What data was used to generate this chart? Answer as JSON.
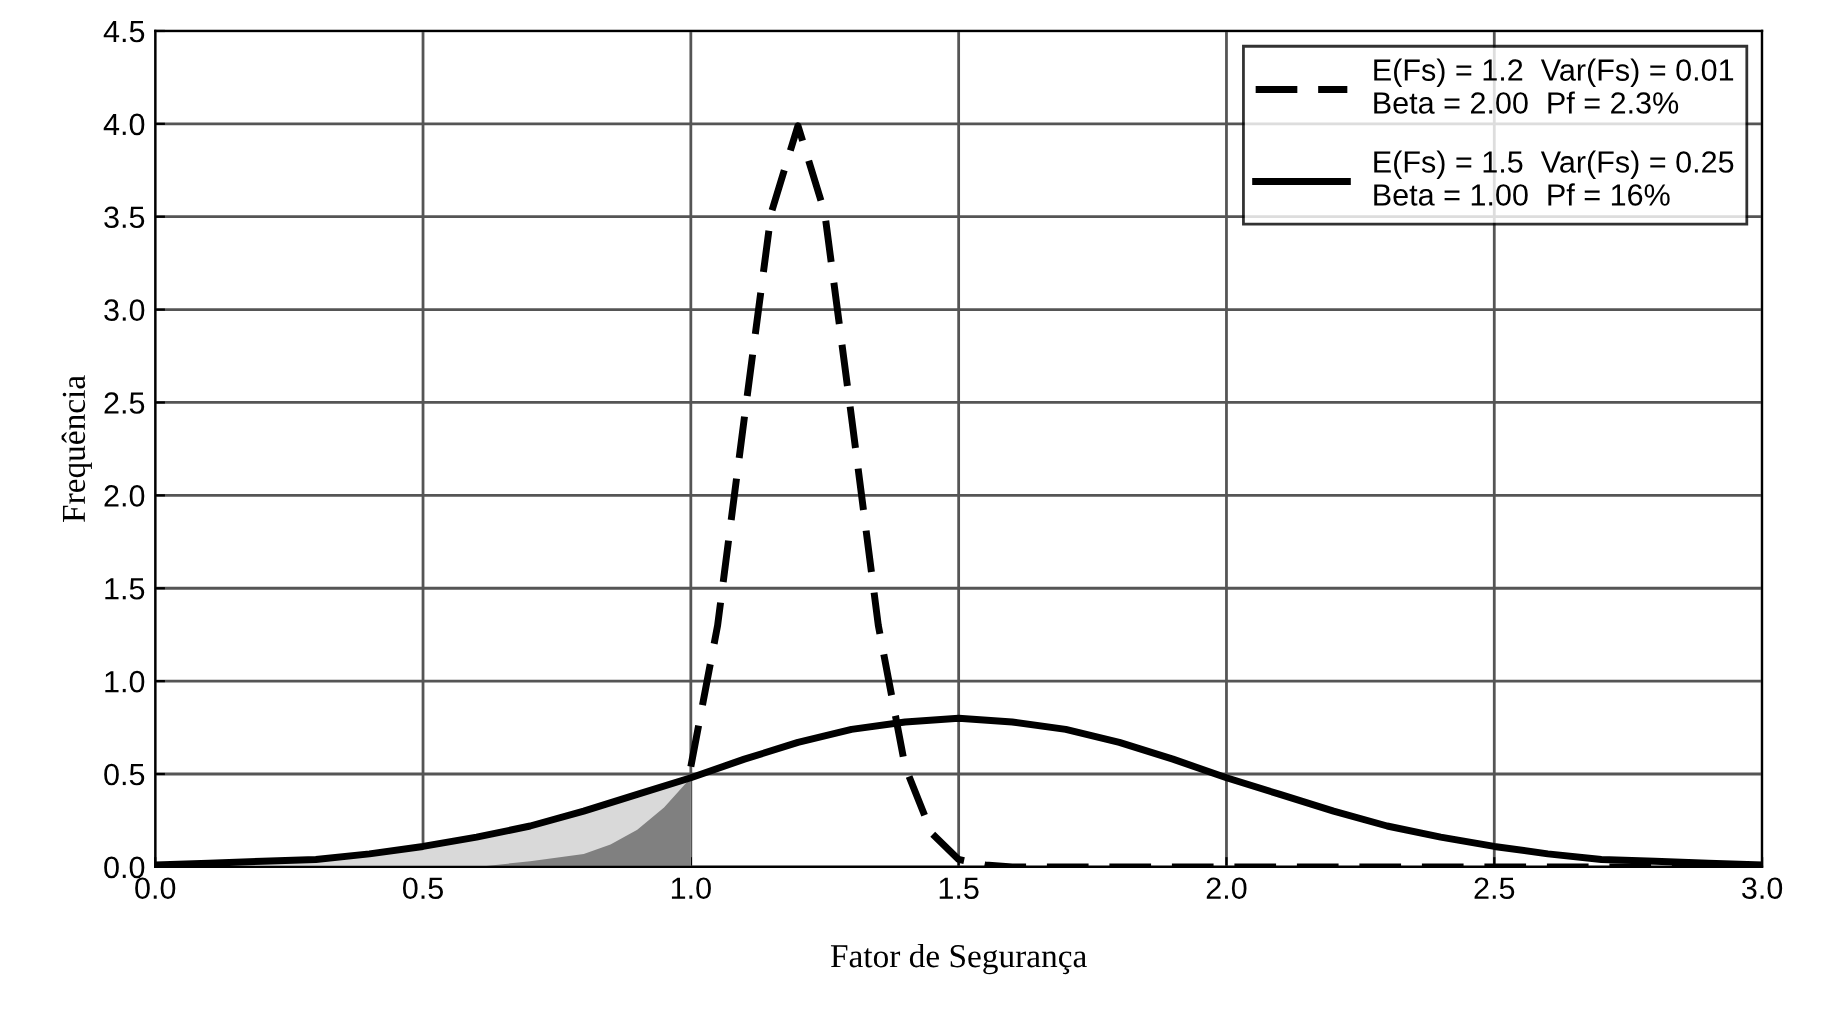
{
  "chart_data": {
    "type": "line",
    "xlabel": "Fator de Segurança",
    "ylabel": "Frequência",
    "xlim": [
      0,
      3
    ],
    "ylim": [
      0,
      4.5
    ],
    "xticks": [
      {
        "value": 0,
        "label": "0.0"
      },
      {
        "value": 0.5,
        "label": "0.5"
      },
      {
        "value": 1,
        "label": "1.0"
      },
      {
        "value": 1.5,
        "label": "1.5"
      },
      {
        "value": 2,
        "label": "2.0"
      },
      {
        "value": 2.5,
        "label": "2.5"
      },
      {
        "value": 3,
        "label": "3.0"
      }
    ],
    "yticks": [
      {
        "value": 0,
        "label": "0.0"
      },
      {
        "value": 0.5,
        "label": "0.5"
      },
      {
        "value": 1,
        "label": "1.0"
      },
      {
        "value": 1.5,
        "label": "1.5"
      },
      {
        "value": 2,
        "label": "2.0"
      },
      {
        "value": 2.5,
        "label": "2.5"
      },
      {
        "value": 3,
        "label": "3.0"
      },
      {
        "value": 3.5,
        "label": "3.5"
      },
      {
        "value": 4,
        "label": "4.0"
      },
      {
        "value": 4.5,
        "label": "4.5"
      }
    ],
    "grid": true,
    "legend": "top right",
    "series": [
      {
        "type": "area",
        "color": "#d9d9d9",
        "x": [
          0,
          0.1,
          0.2,
          0.3,
          0.4,
          0.5,
          0.6,
          0.7,
          0.8,
          0.9,
          1.0
        ],
        "values": [
          0.01,
          0.02,
          0.03,
          0.04,
          0.07,
          0.11,
          0.16,
          0.22,
          0.3,
          0.39,
          0.48
        ]
      },
      {
        "type": "area",
        "color": "#808080",
        "x": [
          0.6,
          0.7,
          0.8,
          0.85,
          0.9,
          0.95,
          1.0
        ],
        "values": [
          0,
          0.03,
          0.07,
          0.12,
          0.2,
          0.32,
          0.48
        ]
      },
      {
        "name": "E(Fs) = 1.2  Var(Fs) = 0.01\nBeta = 2.00  Pf = 2.3%",
        "color": "#000000",
        "line_style": "dashed",
        "x": [
          1.0,
          1.05,
          1.1,
          1.15,
          1.2,
          1.25,
          1.3,
          1.35,
          1.4,
          1.45,
          1.5,
          1.55,
          1.6,
          3.0
        ],
        "values": [
          0.54,
          1.3,
          2.42,
          3.52,
          3.99,
          3.52,
          2.42,
          1.3,
          0.54,
          0.18,
          0.04,
          0.01,
          0,
          0
        ]
      },
      {
        "name": "E(Fs) = 1.5  Var(Fs) = 0.25\nBeta = 1.00  Pf = 16%",
        "color": "#000000",
        "line_style": "solid",
        "x": [
          0,
          0.1,
          0.2,
          0.3,
          0.4,
          0.5,
          0.6,
          0.7,
          0.8,
          0.9,
          1.0,
          1.1,
          1.2,
          1.3,
          1.4,
          1.5,
          1.6,
          1.7,
          1.8,
          1.9,
          2.0,
          2.1,
          2.2,
          2.3,
          2.4,
          2.5,
          2.6,
          2.7,
          2.8,
          2.9,
          3.0
        ],
        "values": [
          0.01,
          0.02,
          0.03,
          0.04,
          0.07,
          0.11,
          0.16,
          0.22,
          0.3,
          0.39,
          0.48,
          0.58,
          0.67,
          0.74,
          0.78,
          0.8,
          0.78,
          0.74,
          0.67,
          0.58,
          0.48,
          0.39,
          0.3,
          0.22,
          0.16,
          0.11,
          0.07,
          0.04,
          0.03,
          0.02,
          0.01
        ]
      }
    ]
  }
}
